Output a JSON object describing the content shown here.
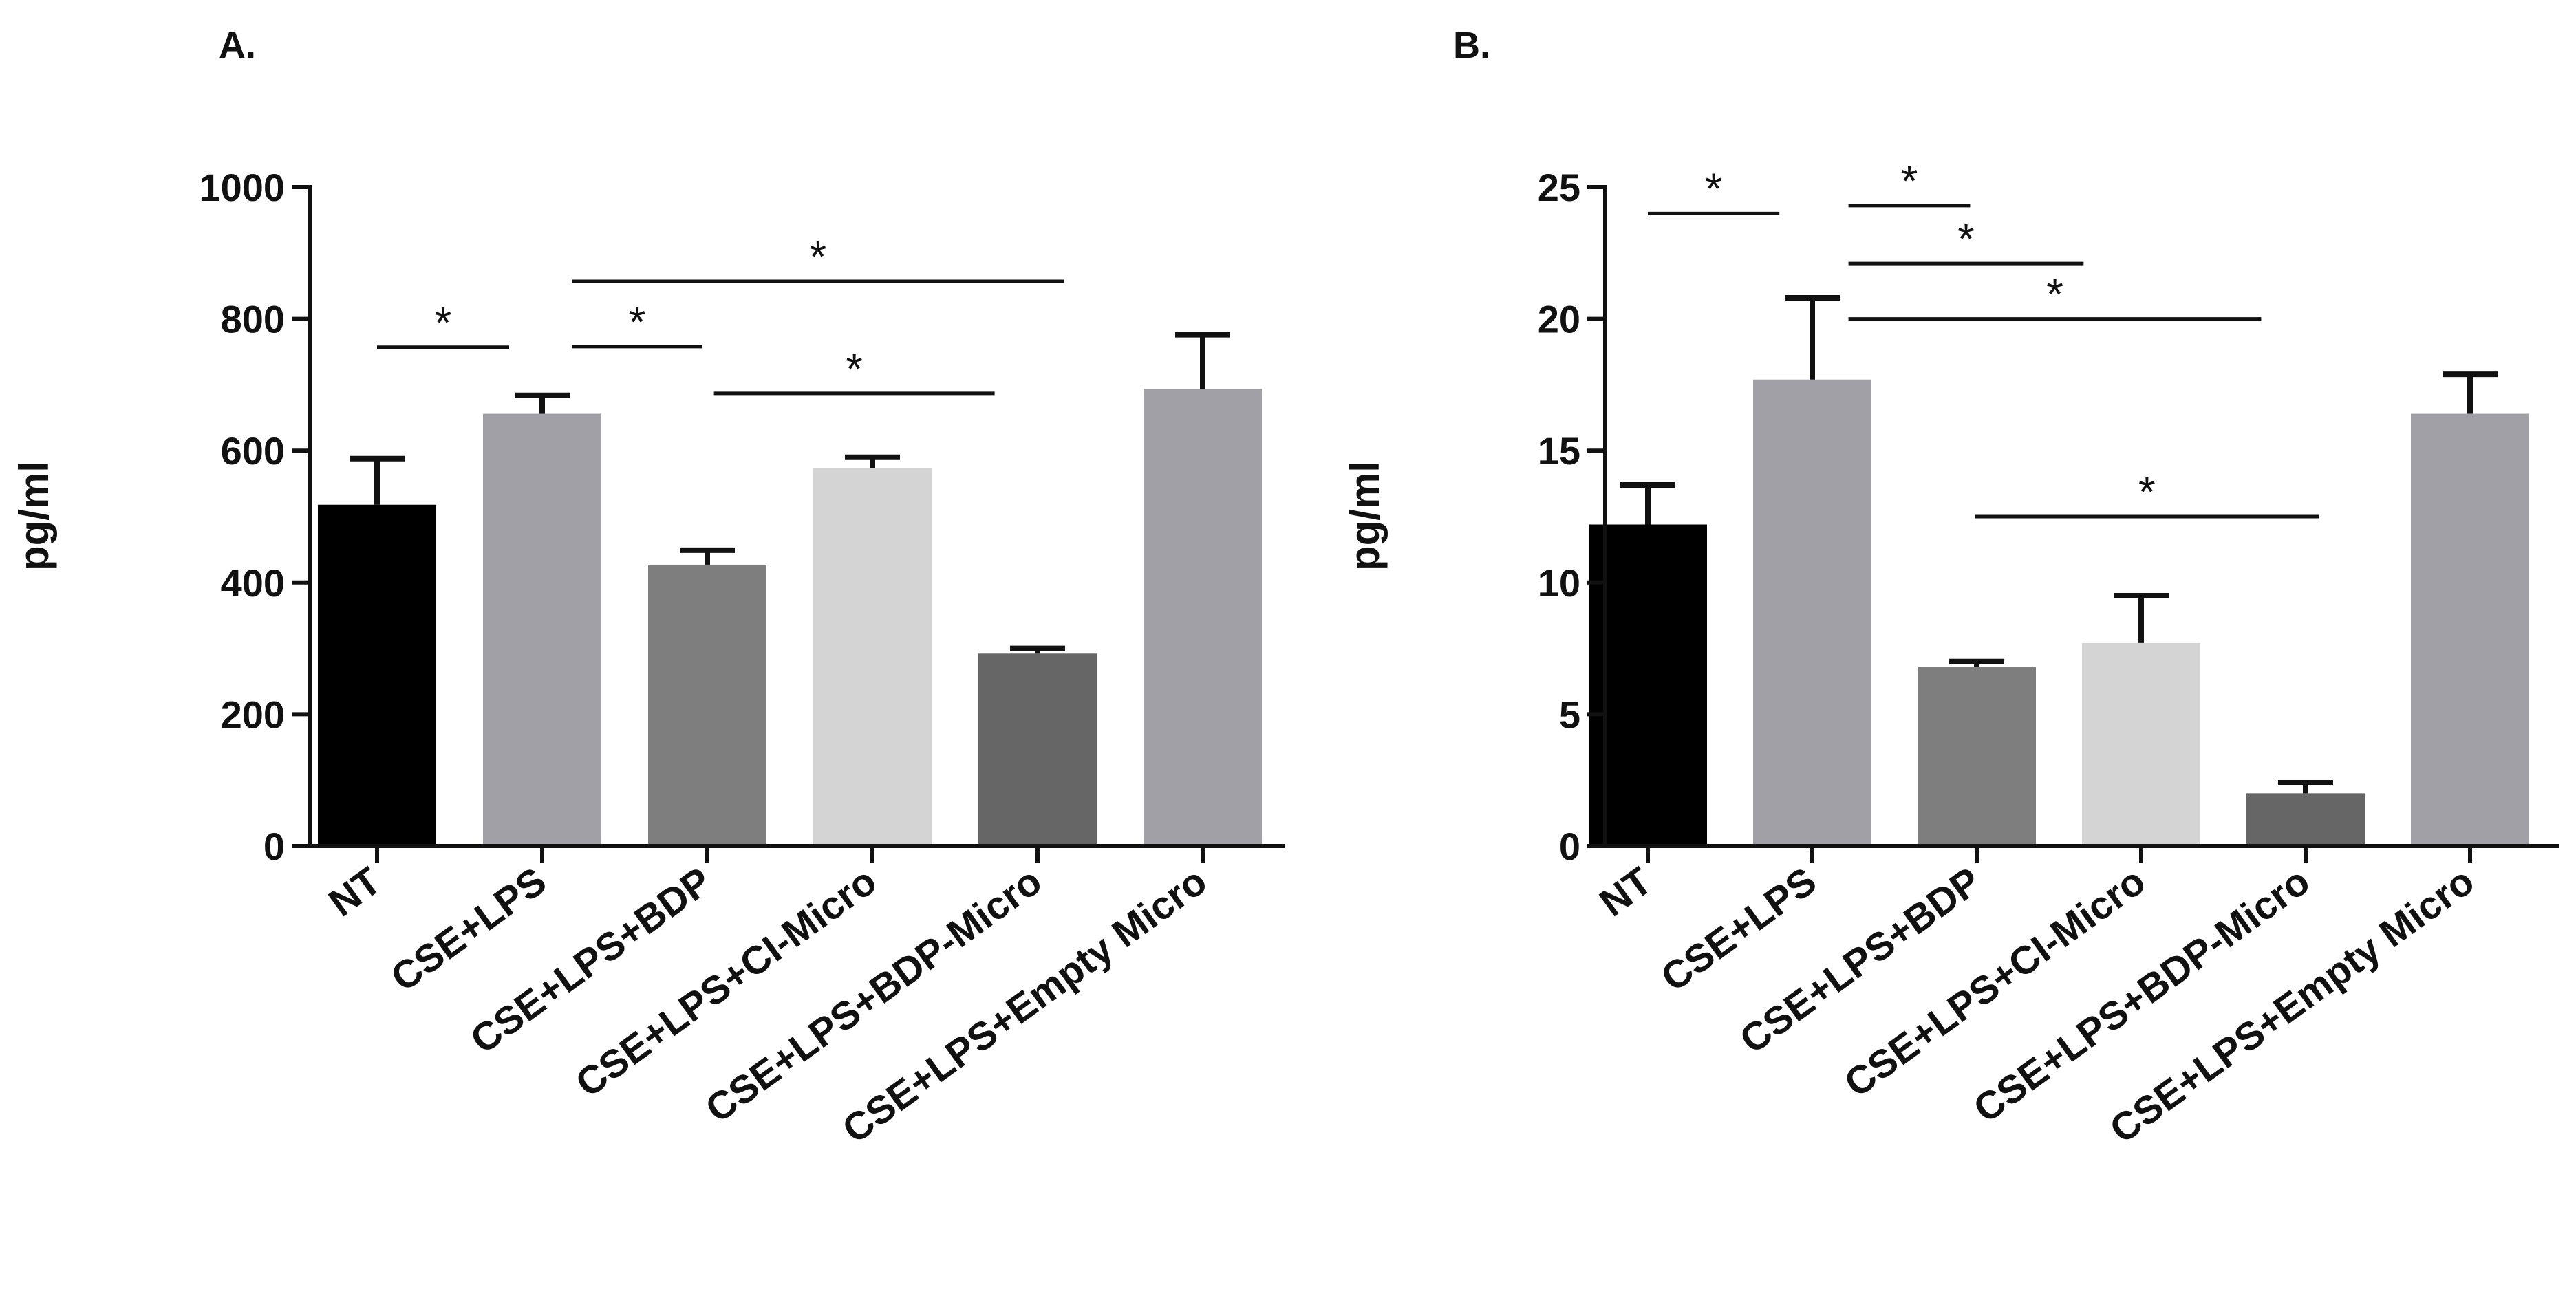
{
  "figure": {
    "panels": [
      {
        "label": "A."
      },
      {
        "label": "B."
      }
    ]
  },
  "chart_data": [
    {
      "type": "bar",
      "panel": "A.",
      "title": "",
      "xlabel": "",
      "ylabel": "pg/ml",
      "ylim": [
        0,
        1000
      ],
      "yticks": [
        0,
        200,
        400,
        600,
        800,
        1000
      ],
      "grid": false,
      "legend": "none",
      "categories": [
        "NT",
        "CSE+LPS",
        "CSE+LPS+BDP",
        "CSE+LPS+CI-Micro",
        "CSE+LPS+BDP-Micro",
        "CSE+LPS+Empty Micro"
      ],
      "values": [
        518,
        656,
        427,
        574,
        292,
        694
      ],
      "errors": [
        70,
        28,
        22,
        16,
        8,
        82
      ],
      "bar_colors": [
        "#000000",
        "#a0a0a6",
        "#7e7e7e",
        "#d4d4d4",
        "#666666",
        "#a0a0a6"
      ],
      "significance": [
        {
          "from": 0.0,
          "to": 0.8,
          "y": 757,
          "label": "*"
        },
        {
          "from": 1.18,
          "to": 1.97,
          "y": 758,
          "label": "*"
        },
        {
          "from": 1.18,
          "to": 4.16,
          "y": 857,
          "label": "*"
        },
        {
          "from": 2.04,
          "to": 3.74,
          "y": 687,
          "label": "*"
        }
      ]
    },
    {
      "type": "bar",
      "panel": "B.",
      "title": "",
      "xlabel": "",
      "ylabel": "pg/ml",
      "ylim": [
        0,
        25
      ],
      "yticks": [
        0,
        5,
        10,
        15,
        20,
        25
      ],
      "grid": false,
      "legend": "none",
      "categories": [
        "NT",
        "CSE+LPS",
        "CSE+LPS+BDP",
        "CSE+LPS+CI-Micro",
        "CSE+LPS+BDP-Micro",
        "CSE+LPS+Empty Micro"
      ],
      "values": [
        12.2,
        17.7,
        6.8,
        7.7,
        2.0,
        16.4
      ],
      "errors": [
        1.5,
        3.1,
        0.2,
        1.8,
        0.4,
        1.5
      ],
      "bar_colors": [
        "#000000",
        "#a0a0a6",
        "#7e7e7e",
        "#d4d4d4",
        "#666666",
        "#a0a0a6"
      ],
      "significance": [
        {
          "from": 0.0,
          "to": 0.8,
          "y": 24.0,
          "label": "*"
        },
        {
          "from": 1.22,
          "to": 1.96,
          "y": 24.3,
          "label": "*"
        },
        {
          "from": 1.22,
          "to": 2.65,
          "y": 22.1,
          "label": "*"
        },
        {
          "from": 1.22,
          "to": 3.73,
          "y": 20.0,
          "label": "*"
        },
        {
          "from": 1.99,
          "to": 4.08,
          "y": 12.5,
          "label": "*"
        }
      ]
    }
  ]
}
